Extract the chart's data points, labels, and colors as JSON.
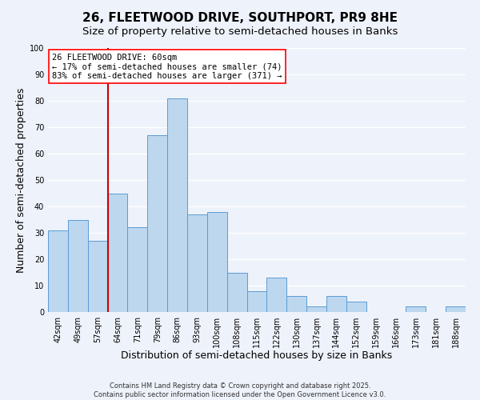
{
  "title": "26, FLEETWOOD DRIVE, SOUTHPORT, PR9 8HE",
  "subtitle": "Size of property relative to semi-detached houses in Banks",
  "xlabel": "Distribution of semi-detached houses by size in Banks",
  "ylabel": "Number of semi-detached properties",
  "bar_labels": [
    "42sqm",
    "49sqm",
    "57sqm",
    "64sqm",
    "71sqm",
    "79sqm",
    "86sqm",
    "93sqm",
    "100sqm",
    "108sqm",
    "115sqm",
    "122sqm",
    "130sqm",
    "137sqm",
    "144sqm",
    "152sqm",
    "159sqm",
    "166sqm",
    "173sqm",
    "181sqm",
    "188sqm"
  ],
  "bar_values": [
    31,
    35,
    27,
    45,
    32,
    67,
    81,
    37,
    38,
    15,
    8,
    13,
    6,
    2,
    6,
    4,
    0,
    0,
    2,
    0,
    2
  ],
  "bar_color": "#bdd7ee",
  "bar_edge_color": "#5b9bd5",
  "background_color": "#eef2fb",
  "grid_color": "#ffffff",
  "vline_x_index": 2.5,
  "vline_color": "#cc0000",
  "annotation_text_line1": "26 FLEETWOOD DRIVE: 60sqm",
  "annotation_text_line2": "← 17% of semi-detached houses are smaller (74)",
  "annotation_text_line3": "83% of semi-detached houses are larger (371) →",
  "ylim": [
    0,
    100
  ],
  "footnote1": "Contains HM Land Registry data © Crown copyright and database right 2025.",
  "footnote2": "Contains public sector information licensed under the Open Government Licence v3.0.",
  "title_fontsize": 11,
  "subtitle_fontsize": 9.5,
  "axis_label_fontsize": 9,
  "tick_fontsize": 7,
  "annotation_fontsize": 7.5,
  "footnote_fontsize": 6
}
